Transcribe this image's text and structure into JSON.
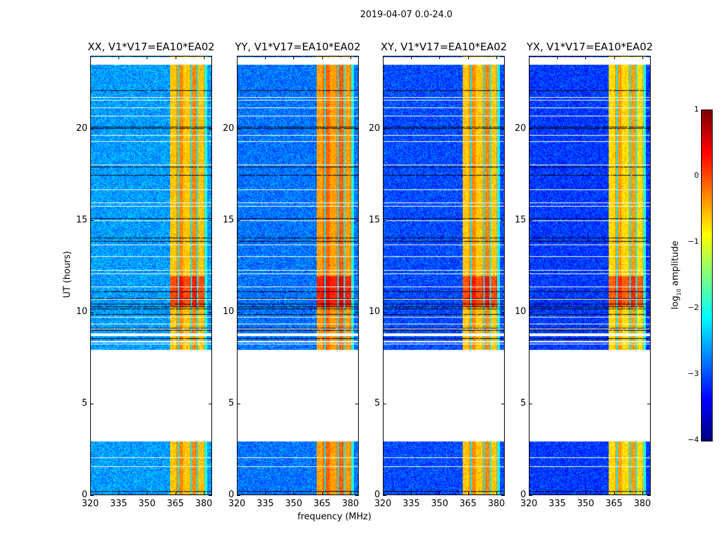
{
  "chart_data": {
    "type": "heatmap",
    "title": "2019-04-07 0.0-24.0",
    "xlabel": "frequency (MHz)",
    "ylabel": "UT (hours)",
    "xlim": [
      320,
      384.4
    ],
    "ylim": [
      0,
      24
    ],
    "xticks": [
      320,
      335,
      350,
      365,
      380
    ],
    "yticks": [
      0,
      5,
      10,
      15,
      20
    ],
    "panels": [
      {
        "title": "XX, V1*V17=EA10*EA02",
        "base_level": -2.6,
        "band_level": -0.6
      },
      {
        "title": "YY, V1*V17=EA10*EA02",
        "base_level": -2.8,
        "band_level": -0.4
      },
      {
        "title": "XY, V1*V17=EA10*EA02",
        "base_level": -3.0,
        "band_level": -0.6
      },
      {
        "title": "YX, V1*V17=EA10*EA02",
        "base_level": -3.1,
        "band_level": -0.7
      }
    ],
    "flagged_ut_ranges": [
      [
        3.0,
        8.0
      ],
      [
        8.4,
        8.5
      ],
      [
        8.75,
        8.9
      ],
      [
        23.55,
        24.0
      ]
    ],
    "bright_band_mhz": [
      362,
      381
    ],
    "bright_time_ut": [
      10.3,
      12.0
    ],
    "colorbar": {
      "label": "log10 amplitude",
      "label_main": "log",
      "label_sub": "10",
      "label_rest": " amplitude",
      "range": [
        -4,
        1
      ],
      "ticks": [
        "−4",
        "−3",
        "−2",
        "−1",
        "0",
        "1"
      ],
      "colormap": "jet"
    }
  }
}
